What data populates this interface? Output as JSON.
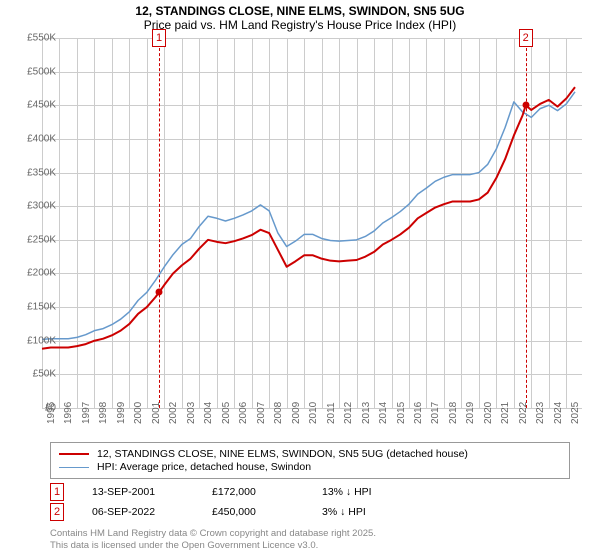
{
  "title_line1": "12, STANDINGS CLOSE, NINE ELMS, SWINDON, SN5 5UG",
  "title_line2": "Price paid vs. HM Land Registry's House Price Index (HPI)",
  "chart": {
    "type": "line",
    "background_color": "#ffffff",
    "grid_color": "#cccccc",
    "axis_label_color": "#666666",
    "axis_fontsize": 10,
    "x": {
      "min": 1995,
      "max": 2025.9,
      "ticks": [
        1995,
        1996,
        1997,
        1998,
        1999,
        2000,
        2001,
        2002,
        2003,
        2004,
        2005,
        2006,
        2007,
        2008,
        2009,
        2010,
        2011,
        2012,
        2013,
        2014,
        2015,
        2016,
        2017,
        2018,
        2019,
        2020,
        2021,
        2022,
        2023,
        2024,
        2025
      ]
    },
    "y": {
      "min": 0,
      "max": 550000,
      "ticks": [
        0,
        50000,
        100000,
        150000,
        200000,
        250000,
        300000,
        350000,
        400000,
        450000,
        500000,
        550000
      ],
      "labels": [
        "£0",
        "£50K",
        "£100K",
        "£150K",
        "£200K",
        "£250K",
        "£300K",
        "£350K",
        "£400K",
        "£450K",
        "£500K",
        "£550K"
      ]
    },
    "series": {
      "property": {
        "label": "12, STANDINGS CLOSE, NINE ELMS, SWINDON, SN5 5UG (detached house)",
        "color": "#cc0000",
        "line_width": 2,
        "points": [
          [
            1995.0,
            88000
          ],
          [
            1995.5,
            90000
          ],
          [
            1996.0,
            90000
          ],
          [
            1996.5,
            90000
          ],
          [
            1997.0,
            92000
          ],
          [
            1997.5,
            95000
          ],
          [
            1998.0,
            100000
          ],
          [
            1998.5,
            103000
          ],
          [
            1999.0,
            108000
          ],
          [
            1999.5,
            115000
          ],
          [
            2000.0,
            125000
          ],
          [
            2000.5,
            140000
          ],
          [
            2001.0,
            150000
          ],
          [
            2001.5,
            165000
          ],
          [
            2001.7,
            172000
          ],
          [
            2002.0,
            183000
          ],
          [
            2002.5,
            200000
          ],
          [
            2003.0,
            212000
          ],
          [
            2003.5,
            222000
          ],
          [
            2004.0,
            237000
          ],
          [
            2004.5,
            250000
          ],
          [
            2005.0,
            247000
          ],
          [
            2005.5,
            245000
          ],
          [
            2006.0,
            248000
          ],
          [
            2006.5,
            252000
          ],
          [
            2007.0,
            257000
          ],
          [
            2007.5,
            265000
          ],
          [
            2008.0,
            260000
          ],
          [
            2008.5,
            235000
          ],
          [
            2009.0,
            210000
          ],
          [
            2009.5,
            218000
          ],
          [
            2010.0,
            227000
          ],
          [
            2010.5,
            227000
          ],
          [
            2011.0,
            222000
          ],
          [
            2011.5,
            219000
          ],
          [
            2012.0,
            218000
          ],
          [
            2012.5,
            219000
          ],
          [
            2013.0,
            220000
          ],
          [
            2013.5,
            225000
          ],
          [
            2014.0,
            232000
          ],
          [
            2014.5,
            243000
          ],
          [
            2015.0,
            250000
          ],
          [
            2015.5,
            258000
          ],
          [
            2016.0,
            268000
          ],
          [
            2016.5,
            282000
          ],
          [
            2017.0,
            290000
          ],
          [
            2017.5,
            298000
          ],
          [
            2018.0,
            303000
          ],
          [
            2018.5,
            307000
          ],
          [
            2019.0,
            307000
          ],
          [
            2019.5,
            307000
          ],
          [
            2020.0,
            310000
          ],
          [
            2020.5,
            320000
          ],
          [
            2021.0,
            342000
          ],
          [
            2021.5,
            370000
          ],
          [
            2022.0,
            405000
          ],
          [
            2022.5,
            435000
          ],
          [
            2022.68,
            450000
          ],
          [
            2023.0,
            443000
          ],
          [
            2023.5,
            452000
          ],
          [
            2024.0,
            458000
          ],
          [
            2024.5,
            448000
          ],
          [
            2025.0,
            460000
          ],
          [
            2025.5,
            477000
          ]
        ]
      },
      "hpi": {
        "label": "HPI: Average price, detached house, Swindon",
        "color": "#6699cc",
        "line_width": 1.5,
        "points": [
          [
            1995.0,
            102000
          ],
          [
            1995.5,
            103000
          ],
          [
            1996.0,
            103000
          ],
          [
            1996.5,
            103000
          ],
          [
            1997.0,
            105000
          ],
          [
            1997.5,
            109000
          ],
          [
            1998.0,
            115000
          ],
          [
            1998.5,
            118000
          ],
          [
            1999.0,
            124000
          ],
          [
            1999.5,
            132000
          ],
          [
            2000.0,
            143000
          ],
          [
            2000.5,
            160000
          ],
          [
            2001.0,
            172000
          ],
          [
            2001.5,
            190000
          ],
          [
            2002.0,
            210000
          ],
          [
            2002.5,
            228000
          ],
          [
            2003.0,
            243000
          ],
          [
            2003.5,
            252000
          ],
          [
            2004.0,
            270000
          ],
          [
            2004.5,
            285000
          ],
          [
            2005.0,
            282000
          ],
          [
            2005.5,
            278000
          ],
          [
            2006.0,
            282000
          ],
          [
            2006.5,
            287000
          ],
          [
            2007.0,
            293000
          ],
          [
            2007.5,
            302000
          ],
          [
            2008.0,
            293000
          ],
          [
            2008.5,
            260000
          ],
          [
            2009.0,
            240000
          ],
          [
            2009.5,
            248000
          ],
          [
            2010.0,
            258000
          ],
          [
            2010.5,
            258000
          ],
          [
            2011.0,
            252000
          ],
          [
            2011.5,
            249000
          ],
          [
            2012.0,
            248000
          ],
          [
            2012.5,
            249000
          ],
          [
            2013.0,
            250000
          ],
          [
            2013.5,
            255000
          ],
          [
            2014.0,
            263000
          ],
          [
            2014.5,
            275000
          ],
          [
            2015.0,
            283000
          ],
          [
            2015.5,
            292000
          ],
          [
            2016.0,
            303000
          ],
          [
            2016.5,
            318000
          ],
          [
            2017.0,
            327000
          ],
          [
            2017.5,
            337000
          ],
          [
            2018.0,
            343000
          ],
          [
            2018.5,
            347000
          ],
          [
            2019.0,
            347000
          ],
          [
            2019.5,
            347000
          ],
          [
            2020.0,
            350000
          ],
          [
            2020.5,
            362000
          ],
          [
            2021.0,
            385000
          ],
          [
            2021.5,
            417000
          ],
          [
            2022.0,
            455000
          ],
          [
            2022.5,
            440000
          ],
          [
            2023.0,
            432000
          ],
          [
            2023.5,
            445000
          ],
          [
            2024.0,
            450000
          ],
          [
            2024.5,
            442000
          ],
          [
            2025.0,
            452000
          ],
          [
            2025.5,
            470000
          ]
        ]
      }
    },
    "sale_markers": [
      {
        "n": "1",
        "year": 2001.7,
        "price": 172000
      },
      {
        "n": "2",
        "year": 2022.68,
        "price": 450000
      }
    ]
  },
  "legend": {
    "border_color": "#999999",
    "rows": [
      {
        "color": "#cc0000",
        "width": 2,
        "label": "12, STANDINGS CLOSE, NINE ELMS, SWINDON, SN5 5UG (detached house)"
      },
      {
        "color": "#6699cc",
        "width": 1.5,
        "label": "HPI: Average price, detached house, Swindon"
      }
    ]
  },
  "sales": [
    {
      "n": "1",
      "date": "13-SEP-2001",
      "price": "£172,000",
      "delta": "13% ↓ HPI"
    },
    {
      "n": "2",
      "date": "06-SEP-2022",
      "price": "£450,000",
      "delta": "3% ↓ HPI"
    }
  ],
  "footer_line1": "Contains HM Land Registry data © Crown copyright and database right 2025.",
  "footer_line2": "This data is licensed under the Open Government Licence v3.0."
}
